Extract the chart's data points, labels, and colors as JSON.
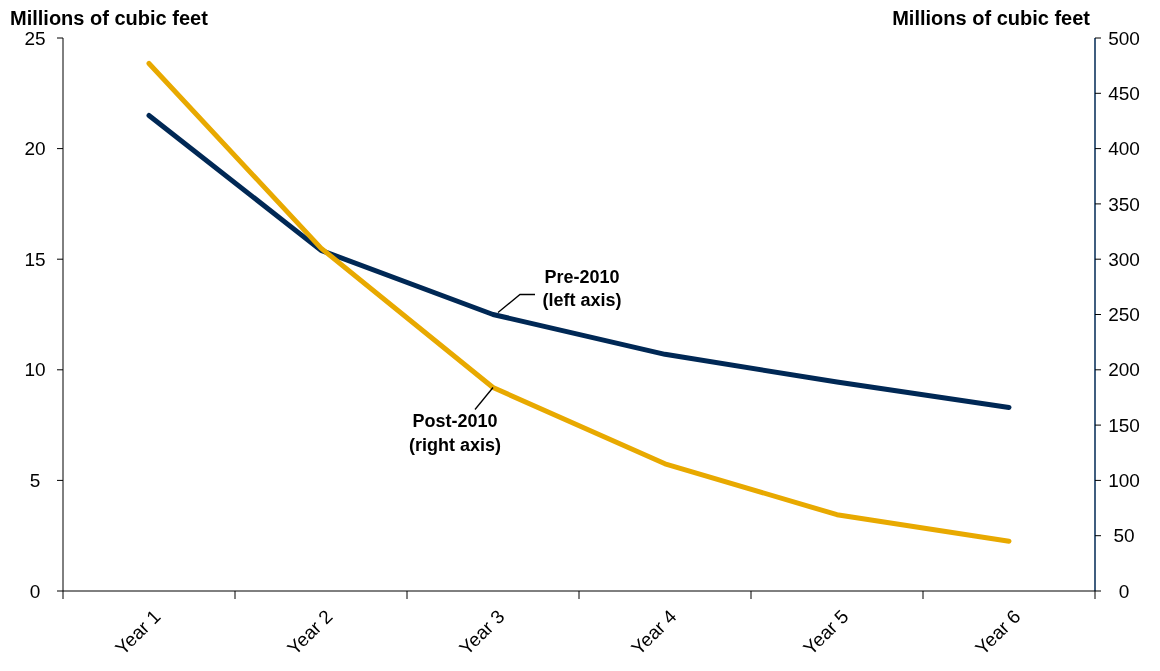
{
  "chart_data": {
    "type": "line",
    "ylabel": "Millions of cubic feet",
    "y2label": "Millions of cubic feet",
    "categories": [
      "Year 1",
      "Year 2",
      "Year 3",
      "Year 4",
      "Year 5",
      "Year 6"
    ],
    "series": [
      {
        "name": "Pre-2010 (left axis)",
        "color": "#002855",
        "values": [
          21.5,
          15.4,
          12.5,
          10.7,
          9.45,
          8.3
        ]
      },
      {
        "name": "Post-2010 (right axis)",
        "color": "#e8a900",
        "axis": "y2",
        "values": [
          477,
          310,
          184,
          115,
          69,
          45
        ]
      }
    ],
    "ylim": [
      0,
      25
    ],
    "yticks": [
      0,
      5,
      10,
      15,
      20,
      25
    ],
    "y2lim": [
      0,
      500
    ],
    "y2ticks": [
      0,
      50,
      100,
      150,
      200,
      250,
      300,
      350,
      400,
      450,
      500
    ],
    "grid": false,
    "legend": false,
    "marker": "none",
    "line_style": "solid"
  }
}
